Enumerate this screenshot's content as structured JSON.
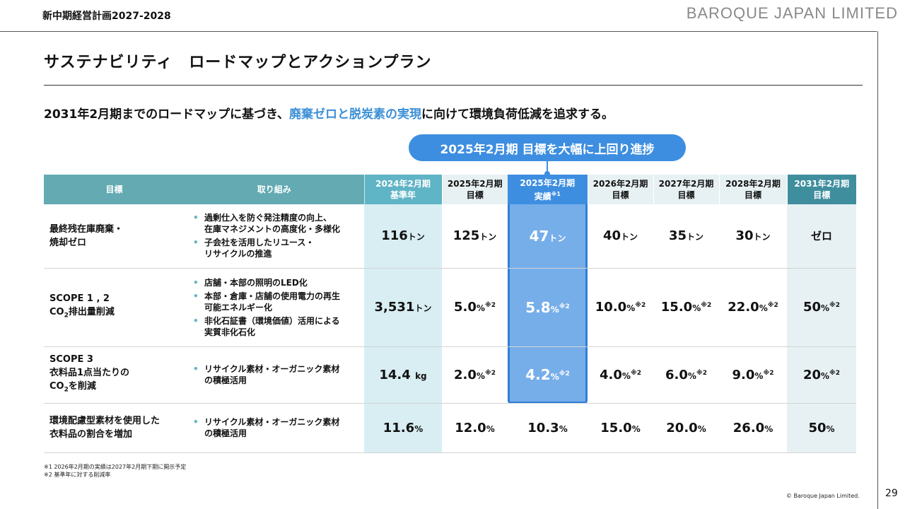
{
  "header": {
    "plan": "新中期経営計画2027-2028",
    "brand": "BAROQUE  JAPAN  LIMITED"
  },
  "title": "サステナビリティ　ロードマップとアクションプラン",
  "lead": {
    "pre": "2031年2月期までのロードマップに基づき、",
    "highlight": "廃棄ゼロと脱炭素の実現",
    "post": "に向けて環境負荷低減を追求する。"
  },
  "callout": "2025年2月期 目標を大幅に上回り進捗",
  "table": {
    "headers": {
      "goal": "目標",
      "actions": "取り組み",
      "base_1": "2024年2月期",
      "base_2": "基準年",
      "y2025t_1": "2025年2月期",
      "y2025t_2": "目標",
      "y2025a_1": "2025年2月期",
      "y2025a_2": "実績",
      "y2025a_note": "※1",
      "y2026_1": "2026年2月期",
      "y2026_2": "目標",
      "y2027_1": "2027年2月期",
      "y2027_2": "目標",
      "y2028_1": "2028年2月期",
      "y2028_2": "目標",
      "y2031_1": "2031年2月期",
      "y2031_2": "目標"
    },
    "rows": [
      {
        "goal_1": "最終残在庫廃棄・",
        "goal_2": "焼却ゼロ",
        "actions": [
          [
            "過剰仕入を防ぐ発注精度の向上、",
            "在庫マネジメントの高度化・多様化"
          ],
          [
            "子会社を活用したリユース・",
            "リサイクルの推進"
          ]
        ],
        "values": [
          {
            "n": "116",
            "u": "トン",
            "s": ""
          },
          {
            "n": "125",
            "u": "トン",
            "s": ""
          },
          {
            "n": "47",
            "u": "トン",
            "s": ""
          },
          {
            "n": "40",
            "u": "トン",
            "s": ""
          },
          {
            "n": "35",
            "u": "トン",
            "s": ""
          },
          {
            "n": "30",
            "u": "トン",
            "s": ""
          },
          {
            "n": "ゼロ",
            "u": "",
            "s": ""
          }
        ]
      },
      {
        "goal_1": "SCOPE 1 , 2",
        "goal_2a": "CO",
        "goal_2sub": "2",
        "goal_2b": "排出量削減",
        "actions": [
          [
            "店舗・本部の照明のLED化"
          ],
          [
            "本部・倉庫・店舗の使用電力の再生",
            "可能エネルギー化"
          ],
          [
            "非化石証書（環境価値）活用による",
            "実質非化石化"
          ]
        ],
        "values": [
          {
            "n": "3,531",
            "u": "トン",
            "s": ""
          },
          {
            "n": "5.0",
            "u": "%",
            "s": "※2"
          },
          {
            "n": "5.8",
            "u": "%",
            "s": "※2"
          },
          {
            "n": "10.0",
            "u": "%",
            "s": "※2"
          },
          {
            "n": "15.0",
            "u": "%",
            "s": "※2"
          },
          {
            "n": "22.0",
            "u": "%",
            "s": "※2"
          },
          {
            "n": "50",
            "u": "%",
            "s": "※2"
          }
        ]
      },
      {
        "goal_1": "SCOPE 3",
        "goal_2": "衣料品1点当たりの",
        "goal_3a": "CO",
        "goal_3sub": "2",
        "goal_3b": "を削減",
        "actions": [
          [
            "リサイクル素材・オーガニック素材",
            "の積極活用"
          ]
        ],
        "values": [
          {
            "n": "14.4",
            "u": "kg",
            "s": ""
          },
          {
            "n": "2.0",
            "u": "%",
            "s": "※2"
          },
          {
            "n": "4.2",
            "u": "%",
            "s": "※2"
          },
          {
            "n": "4.0",
            "u": "%",
            "s": "※2"
          },
          {
            "n": "6.0",
            "u": "%",
            "s": "※2"
          },
          {
            "n": "9.0",
            "u": "%",
            "s": "※2"
          },
          {
            "n": "20",
            "u": "%",
            "s": "※2"
          }
        ]
      },
      {
        "goal_1": "環境配慮型素材を使用した",
        "goal_2": "衣料品の割合を増加",
        "actions": [
          [
            "リサイクル素材・オーガニック素材",
            "の積極活用"
          ]
        ],
        "values": [
          {
            "n": "11.6",
            "u": "%",
            "s": ""
          },
          {
            "n": "12.0",
            "u": "%",
            "s": ""
          },
          {
            "n": "10.3",
            "u": "%",
            "s": ""
          },
          {
            "n": "15.0",
            "u": "%",
            "s": ""
          },
          {
            "n": "20.0",
            "u": "%",
            "s": ""
          },
          {
            "n": "26.0",
            "u": "%",
            "s": ""
          },
          {
            "n": "50",
            "u": "%",
            "s": ""
          }
        ]
      }
    ]
  },
  "footnotes": [
    "※1 2026年2月期の実績は2027年2月期下期に開示予定",
    "※2 基準年に対する削減率"
  ],
  "copyright": "© Baroque Japan Limited.",
  "page_number": "29"
}
